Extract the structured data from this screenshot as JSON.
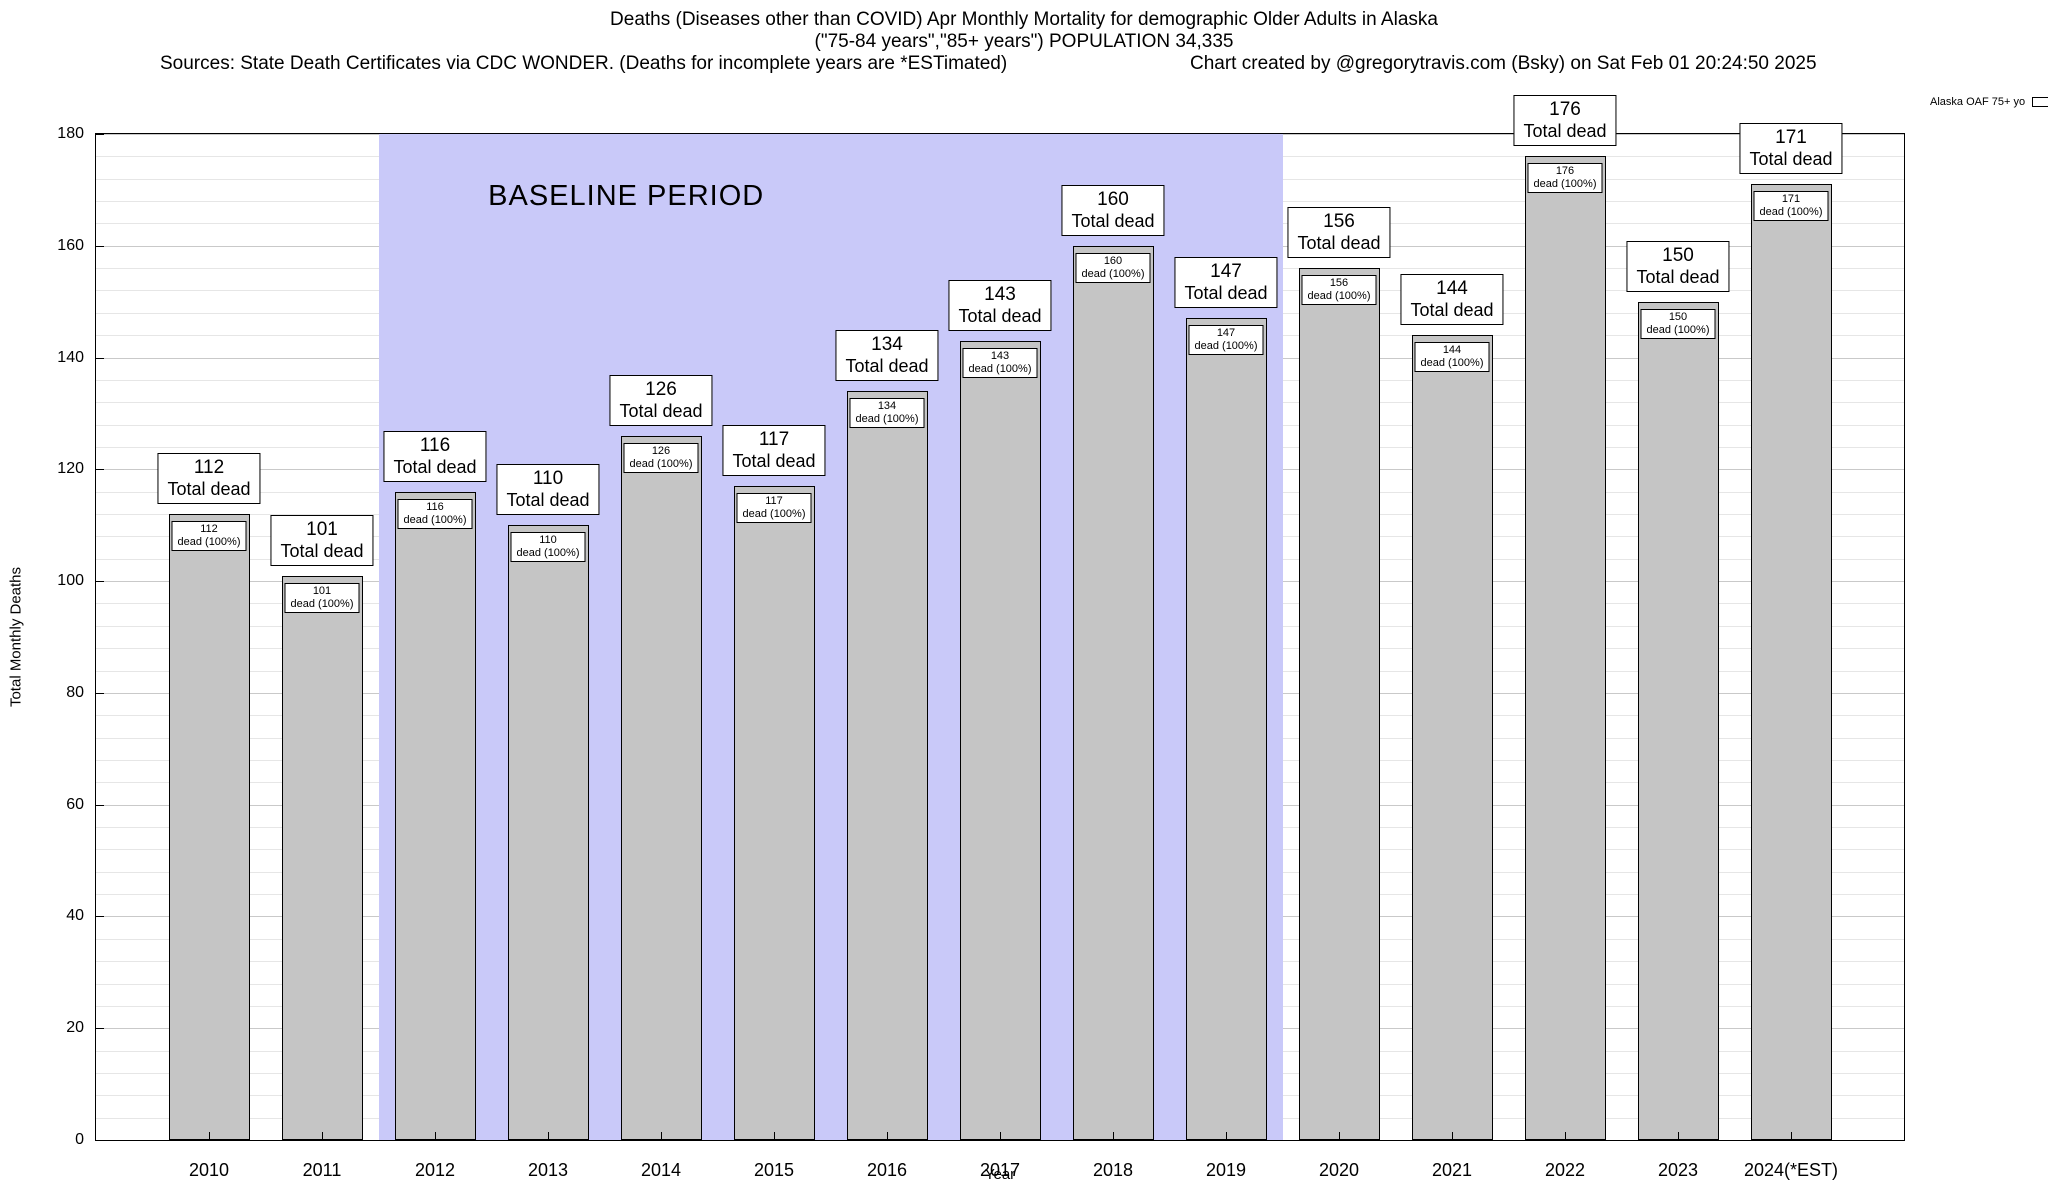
{
  "header": {
    "title_line1": "Deaths (Diseases other than COVID) Apr Monthly Mortality for demographic Older Adults in Alaska",
    "title_line2": "(\"75-84 years\",\"85+ years\") POPULATION 34,335",
    "sources": "Sources: State Death Certificates via CDC WONDER. (Deaths for incomplete years are *ESTimated)",
    "credit": "Chart created by @gregorytravis.com (Bsky) on Sat Feb 01 20:24:50 2025"
  },
  "legend": {
    "label": "Alaska OAF 75+ yo"
  },
  "chart_data": {
    "type": "bar",
    "title": "Deaths (Diseases other than COVID) Apr Monthly Mortality for demographic Older Adults in Alaska",
    "subtitle": "(\"75-84 years\",\"85+ years\") POPULATION 34,335",
    "categories": [
      "2010",
      "2011",
      "2012",
      "2013",
      "2014",
      "2015",
      "2016",
      "2017",
      "2018",
      "2019",
      "2020",
      "2021",
      "2022",
      "2023",
      "2024(*EST)"
    ],
    "series": [
      {
        "name": "Alaska OAF 75+ yo",
        "values": [
          112,
          101,
          116,
          110,
          126,
          117,
          134,
          143,
          160,
          147,
          156,
          144,
          176,
          150,
          171
        ]
      }
    ],
    "xlabel": "Year",
    "ylabel": "Total Monthly Deaths",
    "ylim": [
      0,
      180
    ],
    "ytick_step": 20,
    "minor_grid_step": 4,
    "grid": true,
    "legend_position": "top-right-outside",
    "bar_color": "#c5c5c5",
    "bar_border_color": "#000000",
    "baseline_band": {
      "label": "BASELINE PERIOD",
      "from_category": "2012",
      "to_category": "2019",
      "color": "#c9c9f9"
    },
    "bar_top_label": "Total dead",
    "bar_value_label_suffix": "dead (100%)"
  }
}
